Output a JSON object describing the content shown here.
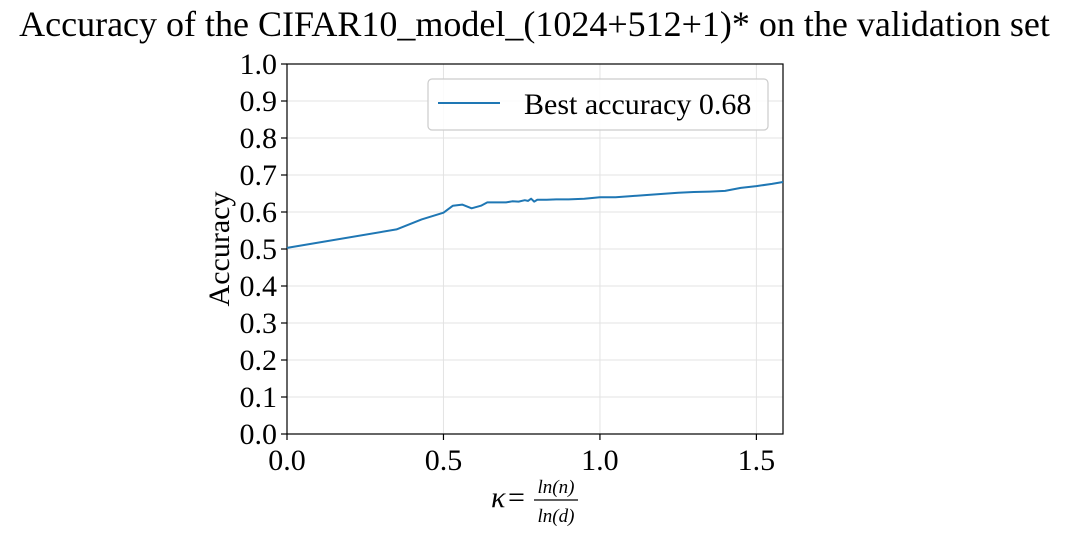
{
  "chart_data": {
    "type": "line",
    "title": "Accuracy of the CIFAR10_model_(1024+512+1)* on the validation set",
    "ylabel": "Accuracy",
    "xlabel": {
      "kappa": "κ",
      "equals": "=",
      "numerator": "ln(n)",
      "denominator": "ln(d)"
    },
    "xlim": [
      0,
      1.585
    ],
    "ylim": [
      0,
      1.0
    ],
    "xticks": [
      0.0,
      0.5,
      1.0,
      1.5
    ],
    "xtick_labels": [
      "0.0",
      "0.5",
      "1.0",
      "1.5"
    ],
    "yticks": [
      0.0,
      0.1,
      0.2,
      0.3,
      0.4,
      0.5,
      0.6,
      0.7,
      0.8,
      0.9,
      1.0
    ],
    "ytick_labels": [
      "0.0",
      "0.1",
      "0.2",
      "0.3",
      "0.4",
      "0.5",
      "0.6",
      "0.7",
      "0.8",
      "0.9",
      "1.0"
    ],
    "grid": true,
    "legend_position": "top-right",
    "series": [
      {
        "name": "Best accuracy 0.68",
        "color": "#1f77b4",
        "x": [
          0.0,
          0.35,
          0.43,
          0.5,
          0.53,
          0.56,
          0.59,
          0.62,
          0.64,
          0.68,
          0.7,
          0.72,
          0.74,
          0.76,
          0.77,
          0.78,
          0.79,
          0.8,
          0.83,
          0.86,
          0.9,
          0.95,
          1.0,
          1.05,
          1.1,
          1.15,
          1.2,
          1.25,
          1.3,
          1.35,
          1.4,
          1.45,
          1.5,
          1.55,
          1.585
        ],
        "y": [
          0.503,
          0.553,
          0.58,
          0.598,
          0.617,
          0.62,
          0.61,
          0.617,
          0.626,
          0.626,
          0.626,
          0.629,
          0.628,
          0.632,
          0.63,
          0.636,
          0.628,
          0.633,
          0.633,
          0.634,
          0.634,
          0.636,
          0.64,
          0.64,
          0.643,
          0.646,
          0.649,
          0.652,
          0.654,
          0.655,
          0.657,
          0.665,
          0.67,
          0.676,
          0.681
        ]
      }
    ]
  }
}
